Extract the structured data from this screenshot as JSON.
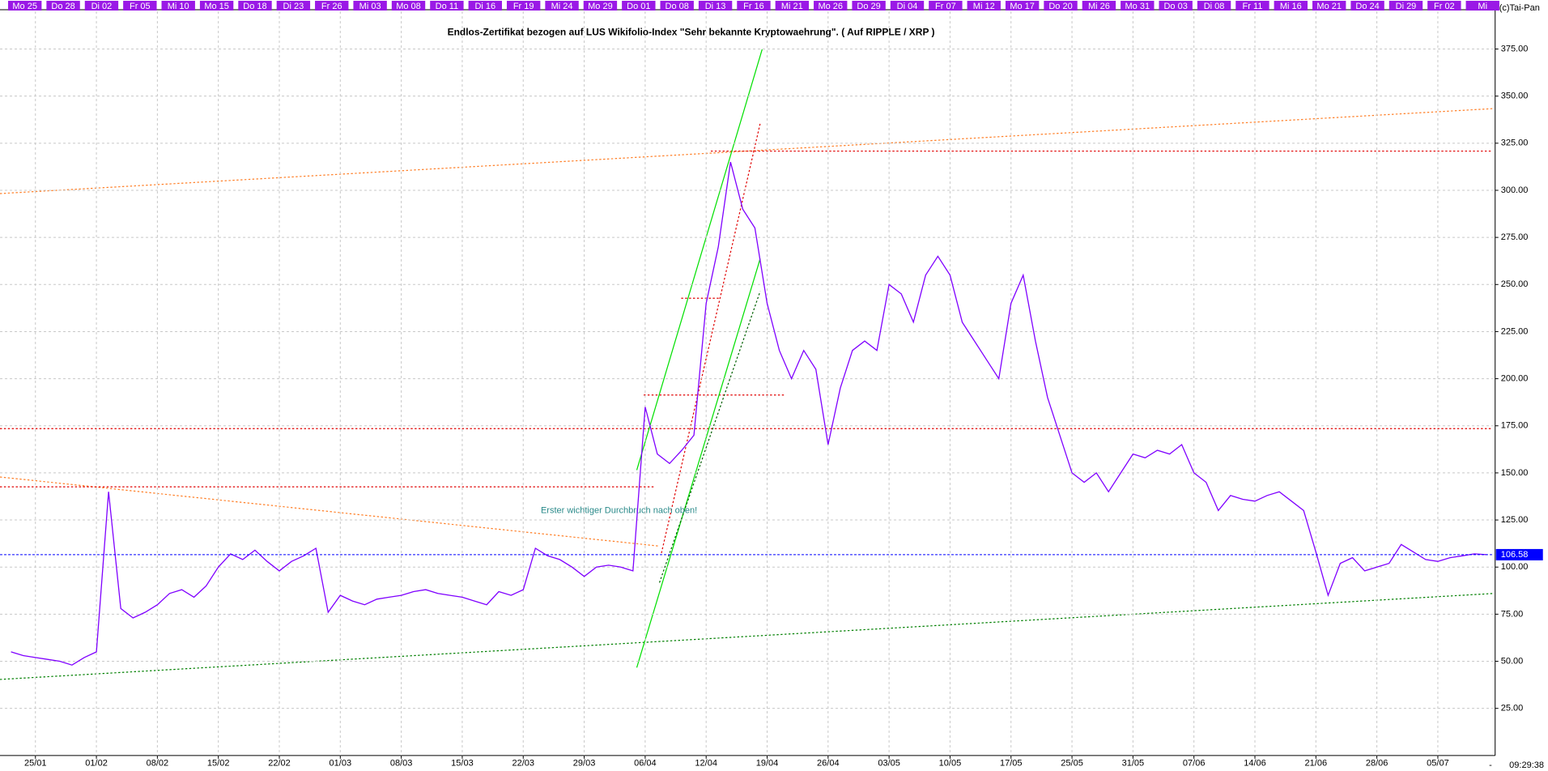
{
  "chart_data": {
    "type": "line",
    "title": "Endlos-Zertifikat bezogen auf LUS Wikifolio-Index \"Sehr bekannte Kryptowaehrung\". ( Auf RIPPLE / XRP )",
    "copyright": "(c)Tai-Pan",
    "annotation": "Erster wichtiger Durchbruch nach oben!",
    "time_label": "09:29:38",
    "end_marker": "-",
    "top_axis_labels": [
      "Mo 25",
      "Do 28",
      "Di 02",
      "Fr 05",
      "Mi 10",
      "Mo 15",
      "Do 18",
      "Di 23",
      "Fr 26",
      "Mi 03",
      "Mo 08",
      "Do 11",
      "Di 16",
      "Fr 19",
      "Mi 24",
      "Mo 29",
      "Do 01",
      "Do 08",
      "Di 13",
      "Fr 16",
      "Mi 21",
      "Mo 26",
      "Do 29",
      "Di 04",
      "Fr 07",
      "Mi 12",
      "Mo 17",
      "Do 20",
      "Mi 26",
      "Mo 31",
      "Do 03",
      "Di 08",
      "Fr 11",
      "Mi 16",
      "Mo 21",
      "Do 24",
      "Di 29",
      "Fr 02",
      "Mi"
    ],
    "categories": [
      null,
      null,
      "25/01",
      null,
      null,
      null,
      null,
      "01/02",
      null,
      null,
      null,
      null,
      "08/02",
      null,
      null,
      null,
      null,
      "15/02",
      null,
      null,
      null,
      null,
      "22/02",
      null,
      null,
      null,
      null,
      "01/03",
      null,
      null,
      null,
      null,
      "08/03",
      null,
      null,
      null,
      null,
      "15/03",
      null,
      null,
      null,
      null,
      "22/03",
      null,
      null,
      null,
      null,
      "29/03",
      null,
      null,
      null,
      null,
      "06/04",
      null,
      null,
      null,
      null,
      "12/04",
      null,
      null,
      null,
      null,
      "19/04",
      null,
      null,
      null,
      null,
      "26/04",
      null,
      null,
      null,
      null,
      "03/05",
      null,
      null,
      null,
      null,
      "10/05",
      null,
      null,
      null,
      null,
      "17/05",
      null,
      null,
      null,
      null,
      "25/05",
      null,
      null,
      null,
      null,
      "31/05",
      null,
      null,
      null,
      null,
      "07/06",
      null,
      null,
      null,
      null,
      "14/06",
      null,
      null,
      null,
      null,
      "21/06",
      null,
      null,
      null,
      null,
      "28/06",
      null,
      null,
      null,
      null,
      "05/07",
      null,
      null,
      null,
      null
    ],
    "series": [
      {
        "name": "RIPPLE / XRP",
        "color": "#7f00ff",
        "values": [
          55,
          53,
          52,
          51,
          50,
          48,
          52,
          55,
          140,
          78,
          73,
          76,
          80,
          86,
          88,
          84,
          90,
          100,
          107,
          104,
          109,
          103,
          98,
          103,
          106,
          110,
          76,
          85,
          82,
          80,
          83,
          84,
          85,
          87,
          88,
          86,
          85,
          84,
          82,
          80,
          87,
          85,
          88,
          110,
          106,
          104,
          100,
          95,
          100,
          101,
          100,
          98,
          185,
          160,
          155,
          162,
          170,
          240,
          270,
          315,
          290,
          280,
          240,
          215,
          200,
          215,
          205,
          165,
          195,
          215,
          220,
          215,
          250,
          245,
          230,
          255,
          265,
          255,
          230,
          220,
          210,
          200,
          240,
          255,
          220,
          190,
          170,
          150,
          145,
          150,
          140,
          150,
          160,
          158,
          162,
          160,
          165,
          150,
          145,
          130,
          138,
          136,
          135,
          138,
          140,
          135,
          130,
          108,
          85,
          102,
          105,
          98,
          100,
          102,
          112,
          108,
          104,
          103,
          105,
          106,
          107,
          106.58
        ]
      }
    ],
    "ylim": [
      0,
      395
    ],
    "yticks": [
      {
        "value": 25,
        "label": "25.00"
      },
      {
        "value": 50,
        "label": "50.00"
      },
      {
        "value": 75,
        "label": "75.00"
      },
      {
        "value": 100,
        "label": "100.00"
      },
      {
        "value": 125,
        "label": "125.00"
      },
      {
        "value": 150,
        "label": "150.00"
      },
      {
        "value": 175,
        "label": "175.00"
      },
      {
        "value": 200,
        "label": "200.00"
      },
      {
        "value": 225,
        "label": "225.00"
      },
      {
        "value": 250,
        "label": "250.00"
      },
      {
        "value": 275,
        "label": "275.00"
      },
      {
        "value": 300,
        "label": "300.00"
      },
      {
        "value": 325,
        "label": "325.00"
      },
      {
        "value": 350,
        "label": "350.00"
      },
      {
        "value": 375,
        "label": "375.00"
      }
    ],
    "grid": true
  }
}
